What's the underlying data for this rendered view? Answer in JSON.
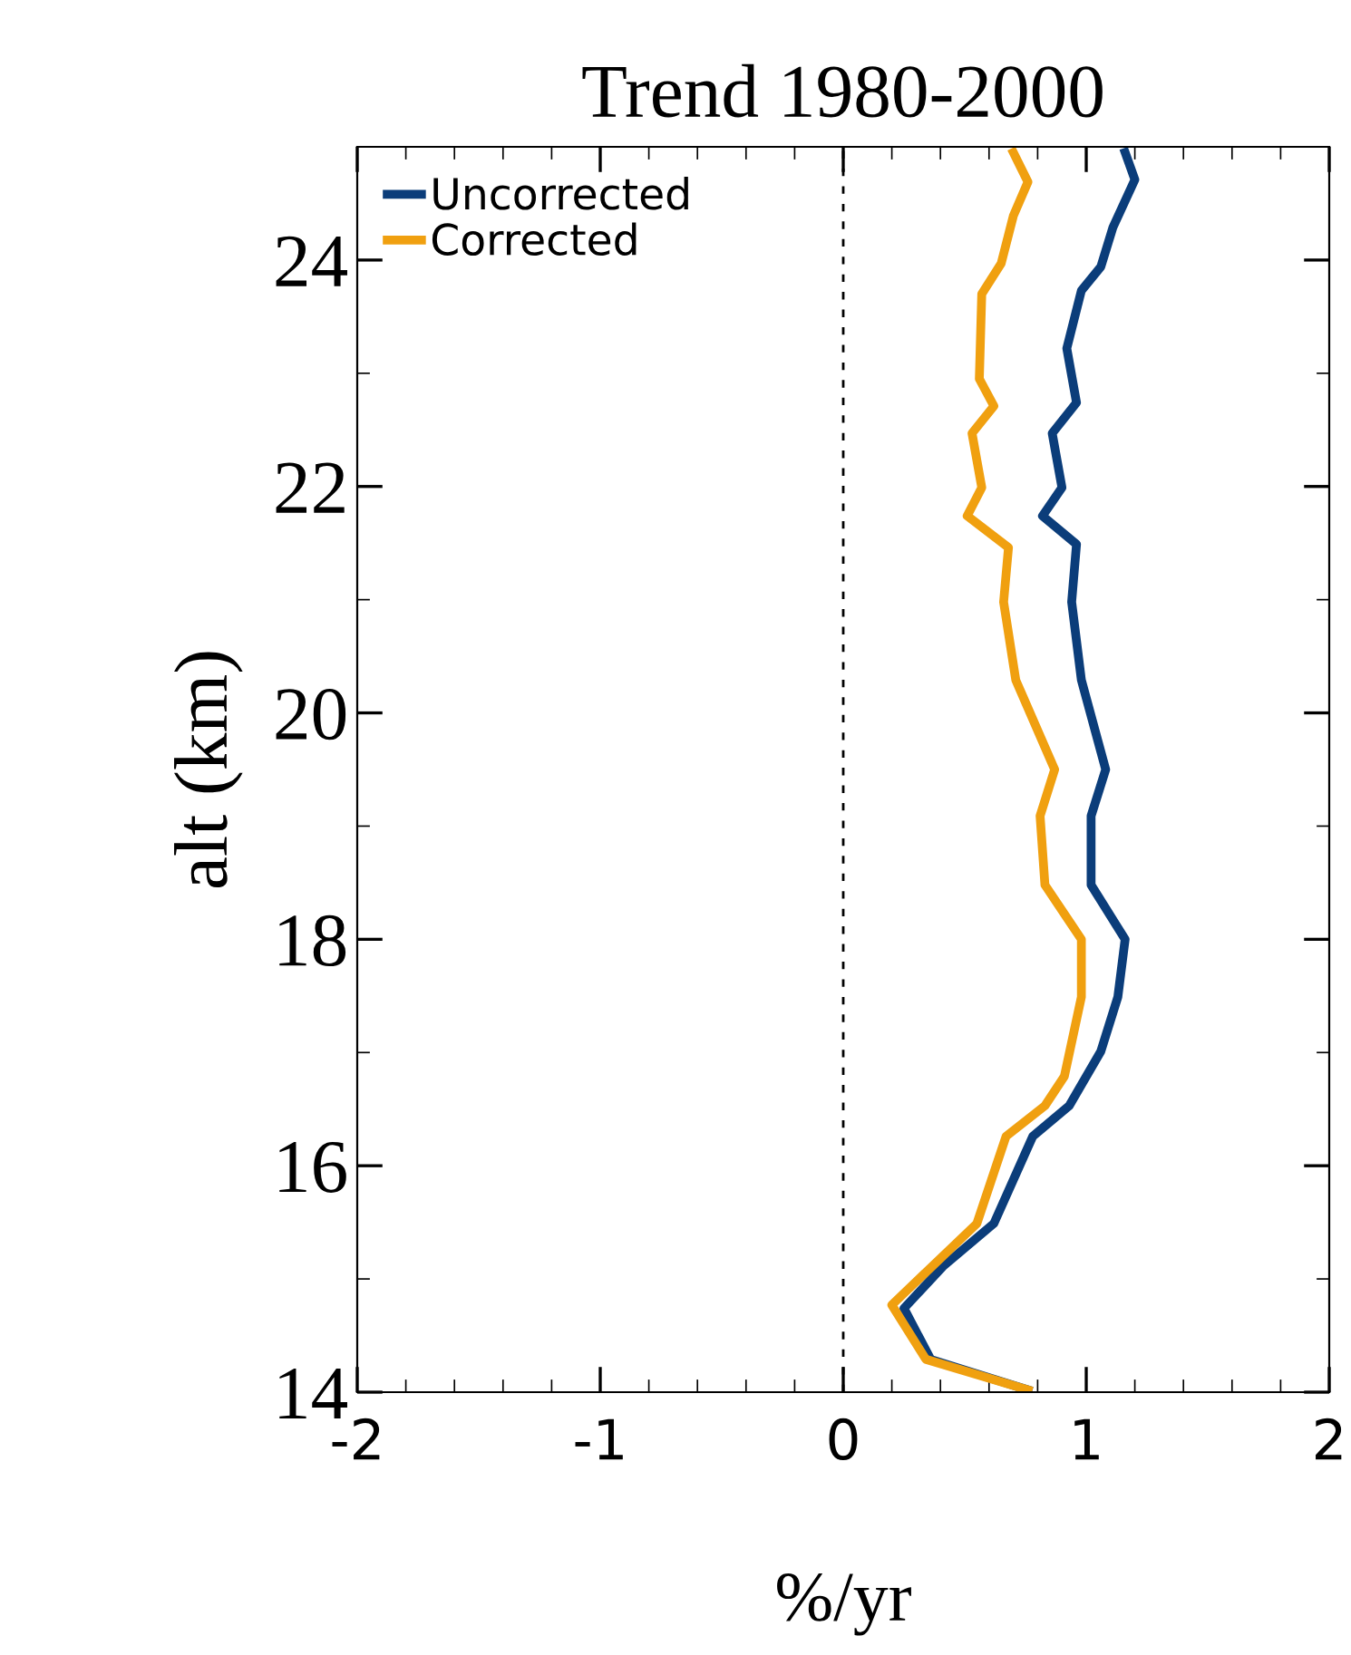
{
  "chart_data": {
    "type": "line",
    "title": "Trend 1980-2000",
    "xlabel": "%/yr",
    "ylabel": "alt (km)",
    "xlim": [
      -2,
      2
    ],
    "xticks": [
      -2,
      -1,
      0,
      1,
      2
    ],
    "ylim": [
      14,
      25
    ],
    "yticks": [
      14,
      16,
      18,
      20,
      22,
      24
    ],
    "legend": "top left",
    "grid": false,
    "marker": "none",
    "line_style": "solid",
    "ref_lines": [
      {
        "axis": "x",
        "value": 0,
        "color": "#000000",
        "line_style": "dashed"
      }
    ],
    "series": [
      {
        "name": "Uncorrected",
        "color": "#0b3d7a",
        "x": [
          1.16,
          1.2,
          1.11,
          1.06,
          0.98,
          0.92,
          0.96,
          0.86,
          0.9,
          0.82,
          0.96,
          0.94,
          0.98,
          1.08,
          1.02,
          1.02,
          1.16,
          1.13,
          1.06,
          0.93,
          0.78,
          0.62,
          0.41,
          0.25,
          0.36,
          0.76
        ],
        "values": [
          24.95,
          24.71,
          24.29,
          23.94,
          23.73,
          23.22,
          22.74,
          22.47,
          21.99,
          21.74,
          21.49,
          20.98,
          20.29,
          19.5,
          19.09,
          18.48,
          18.0,
          17.49,
          17.01,
          16.53,
          16.26,
          15.49,
          15.11,
          14.74,
          14.29,
          14.02
        ]
      },
      {
        "name": "Corrected",
        "color": "#f0a010",
        "x": [
          0.7,
          0.76,
          0.7,
          0.65,
          0.57,
          0.56,
          0.62,
          0.53,
          0.57,
          0.51,
          0.68,
          0.66,
          0.71,
          0.87,
          0.81,
          0.83,
          0.98,
          0.98,
          0.91,
          0.83,
          0.67,
          0.55,
          0.2,
          0.34,
          0.76
        ],
        "values": [
          24.95,
          24.69,
          24.39,
          23.97,
          23.7,
          22.95,
          22.71,
          22.47,
          21.99,
          21.74,
          21.46,
          20.98,
          20.29,
          19.5,
          19.09,
          18.48,
          18.0,
          17.49,
          16.79,
          16.53,
          16.26,
          15.49,
          14.77,
          14.29,
          14.02
        ]
      }
    ]
  }
}
